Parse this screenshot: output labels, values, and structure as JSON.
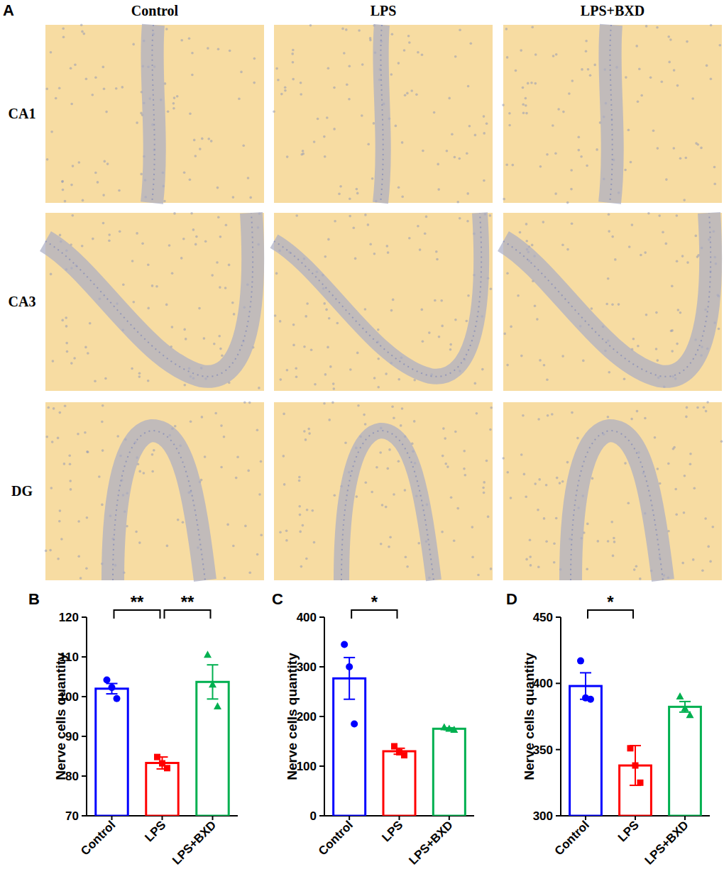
{
  "panel_a": {
    "label": "A",
    "columns": [
      "Control",
      "LPS",
      "LPS+BXD"
    ],
    "rows": [
      "CA1",
      "CA3",
      "DG"
    ]
  },
  "chart_data": [
    {
      "type": "bar",
      "panel": "B",
      "y_label": "Nerve cells  quantity",
      "categories": [
        "Control",
        "LPS",
        "LPS+BXD"
      ],
      "values": [
        102,
        83.3,
        103.7
      ],
      "errors": [
        1.3,
        1.5,
        4.3
      ],
      "points": [
        [
          104.2,
          102.3,
          99.5
        ],
        [
          84.8,
          83.2,
          82
        ],
        [
          110.5,
          103,
          97.5
        ]
      ],
      "colors": [
        "#0000ff",
        "#ff0000",
        "#00b050"
      ],
      "ylim": [
        70,
        120
      ],
      "yticks": [
        70,
        80,
        90,
        100,
        110,
        120
      ],
      "annotations": [
        {
          "text": "**",
          "from": 0,
          "to": 1
        },
        {
          "text": "**",
          "from": 1,
          "to": 2
        }
      ]
    },
    {
      "type": "bar",
      "panel": "C",
      "y_label": "Nerve cells  quantity",
      "categories": [
        "Control",
        "LPS",
        "LPS+BXD"
      ],
      "values": [
        276.7,
        130,
        175.3
      ],
      "errors": [
        42,
        6,
        2
      ],
      "points": [
        [
          345,
          300,
          185
        ],
        [
          140,
          128,
          122
        ],
        [
          178,
          175,
          173
        ]
      ],
      "colors": [
        "#0000ff",
        "#ff0000",
        "#00b050"
      ],
      "ylim": [
        0,
        400
      ],
      "yticks": [
        0,
        100,
        200,
        300,
        400
      ],
      "annotations": [
        {
          "text": "*",
          "from": 0,
          "to": 1
        }
      ]
    },
    {
      "type": "bar",
      "panel": "D",
      "y_label": "Nerve cells  quantity",
      "categories": [
        "Control",
        "LPS",
        "LPS+BXD"
      ],
      "values": [
        398,
        338,
        382.3
      ],
      "errors": [
        10,
        15,
        4
      ],
      "points": [
        [
          417,
          389,
          388
        ],
        [
          351,
          338,
          325
        ],
        [
          390,
          381,
          376
        ]
      ],
      "colors": [
        "#0000ff",
        "#ff0000",
        "#00b050"
      ],
      "ylim": [
        300,
        450
      ],
      "yticks": [
        300,
        350,
        400,
        450
      ],
      "annotations": [
        {
          "text": "*",
          "from": 0,
          "to": 1
        }
      ]
    }
  ]
}
